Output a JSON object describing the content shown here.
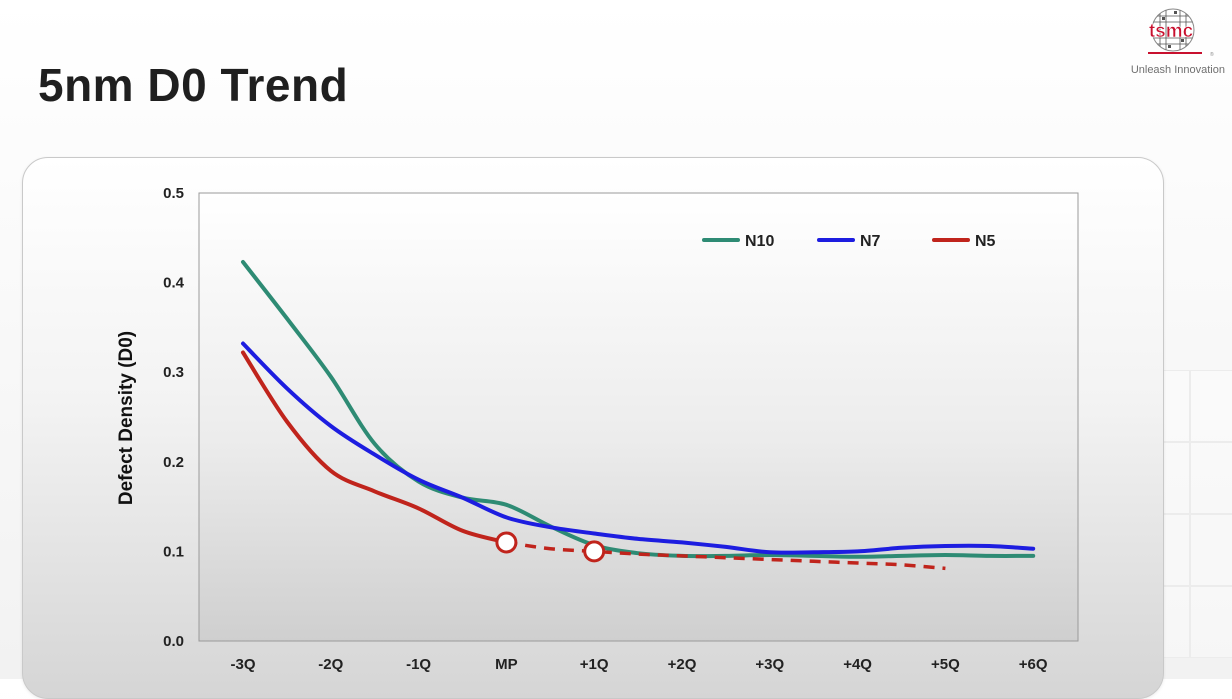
{
  "slide": {
    "title": "5nm D0 Trend"
  },
  "logo": {
    "wordmark": "tsmc",
    "tagline": "Unleash Innovation",
    "brand_color": "#c8102e"
  },
  "chart_data": {
    "type": "line",
    "title": "",
    "xlabel": "",
    "ylabel": "Defect Density (D0)",
    "categories": [
      "-3Q",
      "-2Q",
      "-1Q",
      "MP",
      "+1Q",
      "+2Q",
      "+3Q",
      "+4Q",
      "+5Q",
      "+6Q"
    ],
    "y_ticks": [
      "0.5",
      "0.4",
      "0.3",
      "0.2",
      "0.1",
      "0.0"
    ],
    "ylim": [
      0,
      0.5
    ],
    "grid": false,
    "legend_position": "top-right",
    "series": [
      {
        "name": "N10",
        "color": "#2e8b74",
        "x": [
          -3,
          -2.5,
          -2,
          -1.5,
          -1,
          -0.5,
          0,
          0.5,
          1,
          1.5,
          2,
          2.5,
          3,
          3.5,
          4,
          4.5,
          5,
          5.5,
          6
        ],
        "values": [
          0.423,
          0.36,
          0.295,
          0.22,
          0.178,
          0.16,
          0.152,
          0.128,
          0.107,
          0.098,
          0.095,
          0.095,
          0.096,
          0.095,
          0.094,
          0.095,
          0.096,
          0.095,
          0.095
        ]
      },
      {
        "name": "N7",
        "color": "#1d1de0",
        "x": [
          -3,
          -2.5,
          -2,
          -1.5,
          -1,
          -0.5,
          0,
          0.5,
          1,
          1.5,
          2,
          2.5,
          3,
          3.5,
          4,
          4.5,
          5,
          5.5,
          6
        ],
        "values": [
          0.332,
          0.282,
          0.24,
          0.208,
          0.18,
          0.16,
          0.138,
          0.127,
          0.12,
          0.114,
          0.11,
          0.105,
          0.099,
          0.099,
          0.1,
          0.104,
          0.106,
          0.106,
          0.103
        ]
      },
      {
        "name": "N5",
        "color": "#c0241c",
        "x": [
          -3,
          -2.5,
          -2,
          -1.5,
          -1,
          -0.5,
          0
        ],
        "values": [
          0.322,
          0.245,
          0.19,
          0.167,
          0.148,
          0.123,
          0.11
        ]
      },
      {
        "name": "N5",
        "style": "dashed",
        "color": "#c0241c",
        "x": [
          0,
          0.5,
          1,
          1.5,
          2,
          2.5,
          3,
          3.5,
          4,
          4.5,
          5
        ],
        "values": [
          0.11,
          0.103,
          0.1,
          0.097,
          0.095,
          0.093,
          0.091,
          0.089,
          0.087,
          0.085,
          0.081
        ]
      }
    ],
    "markers": [
      {
        "series": "N5",
        "x": 0,
        "value": 0.11
      },
      {
        "series": "N5",
        "x": 1,
        "value": 0.1
      }
    ]
  }
}
